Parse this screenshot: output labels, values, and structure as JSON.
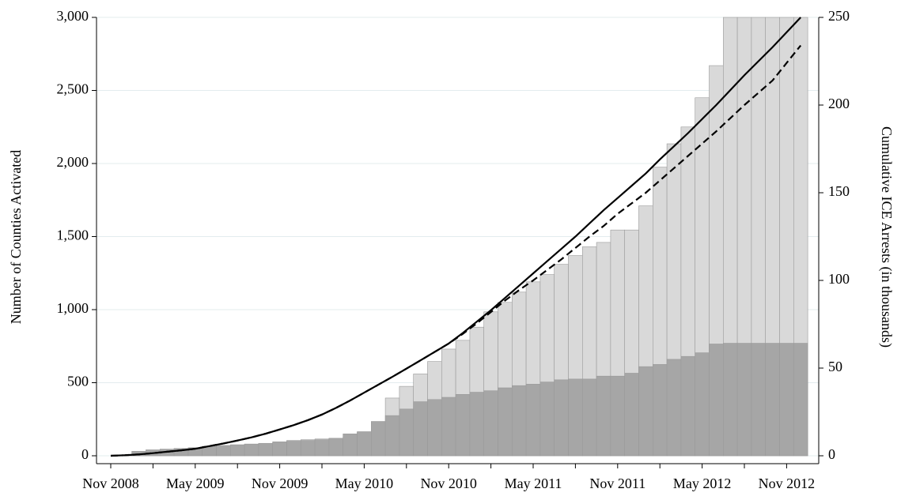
{
  "chart_data": {
    "type": "bar",
    "y_label": "Number of Counties Activated",
    "y2_label": "Cumulative ICE Arrests (in thousands)",
    "categories": [
      "Nov 2008",
      null,
      null,
      null,
      null,
      null,
      "May 2009",
      null,
      null,
      null,
      null,
      null,
      "Nov 2009",
      null,
      null,
      null,
      null,
      null,
      "May 2010",
      null,
      null,
      null,
      null,
      null,
      "Nov 2010",
      null,
      null,
      null,
      null,
      null,
      "May 2011",
      null,
      null,
      null,
      null,
      null,
      "Nov 2011",
      null,
      null,
      null,
      null,
      null,
      "May 2012",
      null,
      null,
      null,
      null,
      null,
      "Nov 2012",
      null
    ],
    "ylim": [
      0,
      3000
    ],
    "yticks": [
      0,
      500,
      {
        "value": 1000,
        "label": "1,000"
      },
      {
        "value": 1500,
        "label": "1,500"
      },
      {
        "value": 2000,
        "label": "2,000"
      },
      {
        "value": 2500,
        "label": "2,500"
      },
      {
        "value": 3000,
        "label": "3,000"
      }
    ],
    "y2lim": [
      0,
      250
    ],
    "y2ticks": [
      0,
      50,
      100,
      150,
      200,
      250
    ],
    "grid": true,
    "series": [
      {
        "type": "bar",
        "color": "#d9d9d9",
        "values": [
          0,
          5,
          30,
          40,
          45,
          50,
          55,
          60,
          70,
          75,
          80,
          85,
          95,
          105,
          110,
          115,
          120,
          130,
          160,
          185,
          395,
          475,
          560,
          645,
          730,
          790,
          880,
          985,
          1050,
          1120,
          1190,
          1240,
          1310,
          1370,
          1430,
          1460,
          1545,
          1545,
          1710,
          1975,
          2135,
          2250,
          2450,
          2670,
          3000,
          3000,
          3000,
          3000,
          3000,
          3000
        ]
      },
      {
        "type": "bar",
        "color": "#a6a6a6",
        "values": [
          0,
          5,
          30,
          40,
          45,
          50,
          55,
          65,
          70,
          75,
          80,
          85,
          95,
          100,
          105,
          110,
          120,
          150,
          165,
          235,
          275,
          320,
          370,
          385,
          400,
          420,
          435,
          445,
          465,
          480,
          490,
          505,
          520,
          525,
          525,
          545,
          545,
          565,
          610,
          625,
          660,
          680,
          705,
          765,
          770,
          770,
          770,
          770,
          770,
          770
        ]
      },
      {
        "type": "line",
        "axis": "y2",
        "dash": false,
        "color": "#000000",
        "values": [
          0,
          0.3,
          0.8,
          1.5,
          2.3,
          3.1,
          4,
          5.5,
          7,
          8.7,
          10.5,
          12.6,
          15,
          17.5,
          20.3,
          23.5,
          27.3,
          31.5,
          36,
          40.5,
          45,
          49.7,
          54.4,
          59.2,
          64,
          70,
          76.5,
          83,
          90,
          97,
          104,
          111,
          118,
          125,
          132.5,
          140,
          147,
          154,
          161,
          169,
          176.5,
          184,
          192,
          200,
          208.5,
          217,
          225,
          233,
          241.5,
          250
        ]
      },
      {
        "type": "line",
        "axis": "y2",
        "dash": true,
        "color": "#000000",
        "values": [
          0,
          0.3,
          0.8,
          1.5,
          2.3,
          3.1,
          4,
          5.5,
          7,
          8.7,
          10.5,
          12.6,
          15,
          17.5,
          20.3,
          23.5,
          27.3,
          31.5,
          36,
          40.5,
          45,
          49.7,
          54.4,
          59.2,
          64,
          69.5,
          75.5,
          82,
          88.5,
          94.5,
          100,
          106,
          112,
          118.5,
          125,
          131,
          138,
          144,
          150,
          157,
          164,
          171,
          178,
          185,
          192.5,
          200,
          207,
          214,
          224,
          234
        ]
      }
    ]
  }
}
